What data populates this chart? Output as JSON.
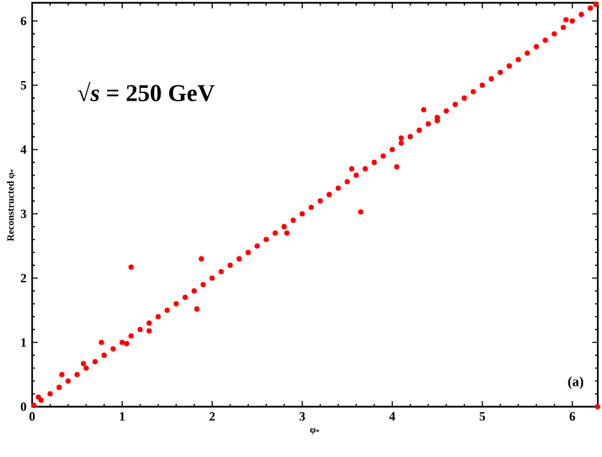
{
  "chart_data": {
    "type": "scatter",
    "xlabel": "φ$_{*}$",
    "ylabel": "Reconstructed φ$_{*}$",
    "annotations": [
      "√*s* = 250 GeV",
      "(a)"
    ],
    "xlim": [
      0,
      6.283
    ],
    "ylim": [
      0,
      6.283
    ],
    "xticks": [
      0,
      1,
      2,
      3,
      4,
      5,
      6
    ],
    "yticks": [
      0,
      1,
      2,
      3,
      4,
      5,
      6
    ],
    "grid": false,
    "series": [
      {
        "color": "#ff0000",
        "x": [
          0.02,
          0.1,
          0.2,
          0.3,
          0.4,
          0.5,
          0.6,
          0.7,
          0.8,
          0.9,
          1.0,
          1.1,
          1.2,
          1.3,
          1.4,
          1.5,
          1.6,
          1.7,
          1.8,
          1.9,
          2.0,
          2.1,
          2.2,
          2.3,
          2.4,
          2.5,
          2.6,
          2.7,
          2.8,
          2.9,
          3.0,
          3.1,
          3.2,
          3.3,
          3.4,
          3.5,
          3.6,
          3.7,
          3.8,
          3.9,
          4.0,
          4.1,
          4.2,
          4.3,
          4.4,
          4.5,
          4.6,
          4.7,
          4.8,
          4.9,
          5.0,
          5.1,
          5.2,
          5.3,
          5.4,
          5.5,
          5.6,
          5.7,
          5.8,
          5.9,
          6.0,
          6.1,
          6.2,
          6.26,
          0.07,
          0.33,
          0.57,
          0.77,
          1.05,
          1.1,
          1.3,
          1.83,
          1.88,
          2.83,
          3.55,
          3.65,
          4.05,
          4.1,
          4.35,
          4.5,
          5.93,
          6.28
        ],
        "values": [
          0.02,
          0.1,
          0.2,
          0.3,
          0.4,
          0.5,
          0.6,
          0.7,
          0.8,
          0.9,
          1.0,
          1.1,
          1.2,
          1.3,
          1.4,
          1.5,
          1.6,
          1.7,
          1.8,
          1.9,
          2.0,
          2.1,
          2.2,
          2.3,
          2.4,
          2.5,
          2.6,
          2.7,
          2.8,
          2.9,
          3.0,
          3.1,
          3.2,
          3.3,
          3.4,
          3.5,
          3.6,
          3.7,
          3.8,
          3.9,
          4.0,
          4.1,
          4.2,
          4.3,
          4.4,
          4.5,
          4.6,
          4.7,
          4.8,
          4.9,
          5.0,
          5.1,
          5.2,
          5.3,
          5.4,
          5.5,
          5.6,
          5.7,
          5.8,
          5.9,
          6.0,
          6.1,
          6.2,
          6.26,
          0.15,
          0.5,
          0.67,
          1.0,
          0.98,
          2.17,
          1.18,
          1.52,
          2.3,
          2.7,
          3.7,
          3.03,
          3.73,
          4.18,
          4.62,
          4.45,
          6.02,
          0.0
        ]
      }
    ]
  }
}
